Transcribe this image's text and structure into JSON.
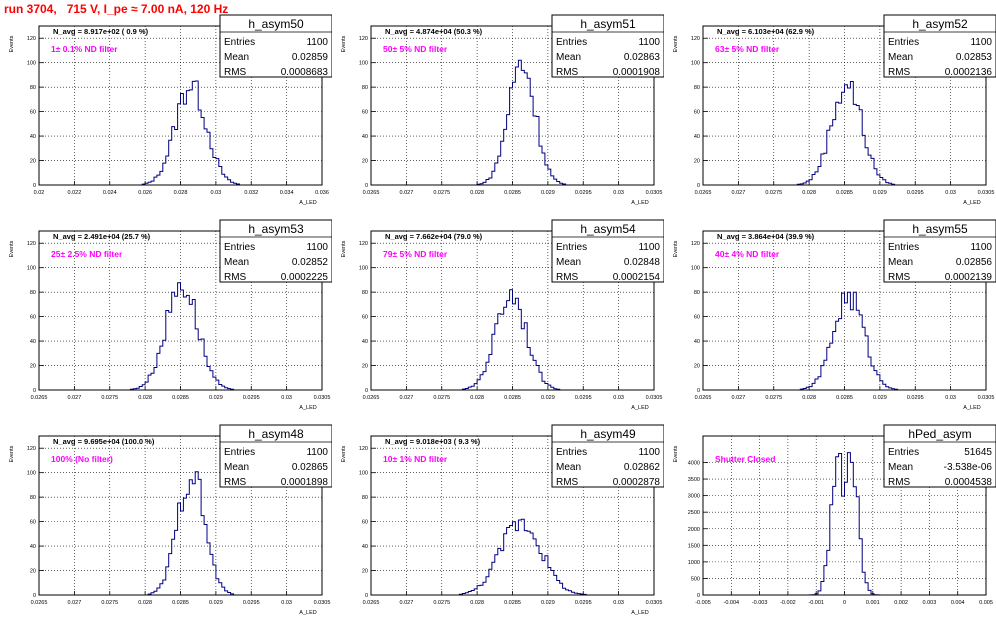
{
  "title": "run 3704,   715 V, I_pe ≈ 7.00 nA, 120 Hz",
  "colors": {
    "title": "#ff0000",
    "hist": "#000080",
    "annotation": "#ff00ff",
    "grid": "#000000",
    "frame": "#000000"
  },
  "chart_data": [
    {
      "type": "histogram",
      "name": "h_asym50",
      "navg": "N_avg = 8.917e+02 ( 0.9 %)",
      "annotation": "1± 0.1% ND filter",
      "stats": [
        [
          "Entries",
          "1100"
        ],
        [
          "Mean",
          "0.02859"
        ],
        [
          "RMS",
          "0.0008683"
        ]
      ],
      "xlabel": "A_LED",
      "ylabel": "Events",
      "xlim": [
        0.02,
        0.036
      ],
      "xticks": [
        0.02,
        0.022,
        0.024,
        0.026,
        0.028,
        0.03,
        0.032,
        0.034,
        0.036
      ],
      "xtick_labels": [
        "0.02",
        "0.022",
        "0.024",
        "0.026",
        "0.028",
        "0.03",
        "0.032",
        "0.034",
        "0.036"
      ],
      "ylim": [
        0,
        130
      ],
      "yticks": [
        0,
        20,
        40,
        60,
        80,
        100,
        120
      ],
      "mean": 0.02859,
      "rms": 0.0008683,
      "peak": 85
    },
    {
      "type": "histogram",
      "name": "h_asym51",
      "navg": "N_avg = 4.874e+04 (50.3 %)",
      "annotation": "50± 5% ND filter",
      "stats": [
        [
          "Entries",
          "1100"
        ],
        [
          "Mean",
          "0.02863"
        ],
        [
          "RMS",
          "0.0001908"
        ]
      ],
      "xlabel": "A_LED",
      "ylabel": "Events",
      "xlim": [
        0.0265,
        0.0305
      ],
      "xticks": [
        0.0265,
        0.027,
        0.0275,
        0.028,
        0.0285,
        0.029,
        0.0295,
        0.03,
        0.0305
      ],
      "xtick_labels": [
        "0.0265",
        "0.027",
        "0.0275",
        "0.028",
        "0.0285",
        "0.029",
        "0.0295",
        "0.03",
        "0.0305"
      ],
      "ylim": [
        0,
        130
      ],
      "yticks": [
        0,
        20,
        40,
        60,
        80,
        100,
        120
      ],
      "mean": 0.02863,
      "rms": 0.0001908,
      "peak": 102
    },
    {
      "type": "histogram",
      "name": "h_asym52",
      "navg": "N_avg = 6.103e+04 (62.9 %)",
      "annotation": "63± 5% ND filter",
      "stats": [
        [
          "Entries",
          "1100"
        ],
        [
          "Mean",
          "0.02853"
        ],
        [
          "RMS",
          "0.0002136"
        ]
      ],
      "xlabel": "A_LED",
      "ylabel": "Events",
      "xlim": [
        0.0265,
        0.0305
      ],
      "xticks": [
        0.0265,
        0.027,
        0.0275,
        0.028,
        0.0285,
        0.029,
        0.0295,
        0.03,
        0.0305
      ],
      "xtick_labels": [
        "0.0265",
        "0.027",
        "0.0275",
        "0.028",
        "0.0285",
        "0.029",
        "0.0295",
        "0.03",
        "0.0305"
      ],
      "ylim": [
        0,
        130
      ],
      "yticks": [
        0,
        20,
        40,
        60,
        80,
        100,
        120
      ],
      "mean": 0.02853,
      "rms": 0.0002136,
      "peak": 85
    },
    {
      "type": "histogram",
      "name": "h_asym53",
      "navg": "N_avg = 2.491e+04 (25.7 %)",
      "annotation": "25± 2.5% ND filter",
      "stats": [
        [
          "Entries",
          "1100"
        ],
        [
          "Mean",
          "0.02852"
        ],
        [
          "RMS",
          "0.0002225"
        ]
      ],
      "xlabel": "A_LED",
      "ylabel": "Events",
      "xlim": [
        0.0265,
        0.0305
      ],
      "xticks": [
        0.0265,
        0.027,
        0.0275,
        0.028,
        0.0285,
        0.029,
        0.0295,
        0.03,
        0.0305
      ],
      "xtick_labels": [
        "0.0265",
        "0.027",
        "0.0275",
        "0.028",
        "0.0285",
        "0.029",
        "0.0295",
        "0.03",
        "0.0305"
      ],
      "ylim": [
        0,
        130
      ],
      "yticks": [
        0,
        20,
        40,
        60,
        80,
        100,
        120
      ],
      "mean": 0.02852,
      "rms": 0.0002225,
      "peak": 90
    },
    {
      "type": "histogram",
      "name": "h_asym54",
      "navg": "N_avg = 7.662e+04 (79.0 %)",
      "annotation": "79± 5% ND filter",
      "stats": [
        [
          "Entries",
          "1100"
        ],
        [
          "Mean",
          "0.02848"
        ],
        [
          "RMS",
          "0.0002154"
        ]
      ],
      "xlabel": "A_LED",
      "ylabel": "Events",
      "xlim": [
        0.0265,
        0.0305
      ],
      "xticks": [
        0.0265,
        0.027,
        0.0275,
        0.028,
        0.0285,
        0.029,
        0.0295,
        0.03,
        0.0305
      ],
      "xtick_labels": [
        "0.0265",
        "0.027",
        "0.0275",
        "0.028",
        "0.0285",
        "0.029",
        "0.0295",
        "0.03",
        "0.0305"
      ],
      "ylim": [
        0,
        130
      ],
      "yticks": [
        0,
        20,
        40,
        60,
        80,
        100,
        120
      ],
      "mean": 0.02848,
      "rms": 0.0002154,
      "peak": 82
    },
    {
      "type": "histogram",
      "name": "h_asym55",
      "navg": "N_avg = 3.864e+04 (39.9 %)",
      "annotation": "40± 4% ND filter",
      "stats": [
        [
          "Entries",
          "1100"
        ],
        [
          "Mean",
          "0.02856"
        ],
        [
          "RMS",
          "0.0002139"
        ]
      ],
      "xlabel": "A_LED",
      "ylabel": "Events",
      "xlim": [
        0.0265,
        0.0305
      ],
      "xticks": [
        0.0265,
        0.027,
        0.0275,
        0.028,
        0.0285,
        0.029,
        0.0295,
        0.03,
        0.0305
      ],
      "xtick_labels": [
        "0.0265",
        "0.027",
        "0.0275",
        "0.028",
        "0.0285",
        "0.029",
        "0.0295",
        "0.03",
        "0.0305"
      ],
      "ylim": [
        0,
        130
      ],
      "yticks": [
        0,
        20,
        40,
        60,
        80,
        100,
        120
      ],
      "mean": 0.02856,
      "rms": 0.0002139,
      "peak": 80
    },
    {
      "type": "histogram",
      "name": "h_asym48",
      "navg": "N_avg = 9.695e+04 (100.0 %)",
      "annotation": "100% (No filter)",
      "stats": [
        [
          "Entries",
          "1100"
        ],
        [
          "Mean",
          "0.02865"
        ],
        [
          "RMS",
          "0.0001898"
        ]
      ],
      "xlabel": "A_LED",
      "ylabel": "Events",
      "xlim": [
        0.0265,
        0.0305
      ],
      "xticks": [
        0.0265,
        0.027,
        0.0275,
        0.028,
        0.0285,
        0.029,
        0.0295,
        0.03,
        0.0305
      ],
      "xtick_labels": [
        "0.0265",
        "0.027",
        "0.0275",
        "0.028",
        "0.0285",
        "0.029",
        "0.0295",
        "0.03",
        "0.0305"
      ],
      "ylim": [
        0,
        130
      ],
      "yticks": [
        0,
        20,
        40,
        60,
        80,
        100,
        120
      ],
      "mean": 0.02865,
      "rms": 0.0001898,
      "peak": 103
    },
    {
      "type": "histogram",
      "name": "h_asym49",
      "navg": "N_avg = 9.018e+03 ( 9.3 %)",
      "annotation": "10± 1% ND filter",
      "stats": [
        [
          "Entries",
          "1100"
        ],
        [
          "Mean",
          "0.02862"
        ],
        [
          "RMS",
          "0.0002878"
        ]
      ],
      "xlabel": "A_LED",
      "ylabel": "Events",
      "xlim": [
        0.0265,
        0.0305
      ],
      "xticks": [
        0.0265,
        0.027,
        0.0275,
        0.028,
        0.0285,
        0.029,
        0.0295,
        0.03,
        0.0305
      ],
      "xtick_labels": [
        "0.0265",
        "0.027",
        "0.0275",
        "0.028",
        "0.0285",
        "0.029",
        "0.0295",
        "0.03",
        "0.0305"
      ],
      "ylim": [
        0,
        130
      ],
      "yticks": [
        0,
        20,
        40,
        60,
        80,
        100,
        120
      ],
      "mean": 0.02862,
      "rms": 0.0002878,
      "peak": 62
    },
    {
      "type": "histogram",
      "name": "hPed_asym",
      "navg": "",
      "annotation": "Shutter Closed",
      "stats": [
        [
          "Entries",
          "51645"
        ],
        [
          "Mean",
          "-3.538e-06"
        ],
        [
          "RMS",
          "0.0004538"
        ]
      ],
      "xlabel": "",
      "ylabel": "Events",
      "xlim": [
        -0.005,
        0.005
      ],
      "xticks": [
        -0.005,
        -0.004,
        -0.003,
        -0.002,
        -0.001,
        0,
        0.001,
        0.002,
        0.003,
        0.004,
        0.005
      ],
      "xtick_labels": [
        "-0.005",
        "-0.004",
        "-0.003",
        "-0.002",
        "-0.001",
        "0",
        "0.001",
        "0.002",
        "0.003",
        "0.004",
        "0.005"
      ],
      "ylim": [
        0,
        4800
      ],
      "yticks": [
        0,
        500,
        1000,
        1500,
        2000,
        2500,
        3000,
        3500,
        4000
      ],
      "mean": -3.5e-06,
      "rms": 0.0004538,
      "peak": 4300,
      "bimodal": true
    }
  ]
}
